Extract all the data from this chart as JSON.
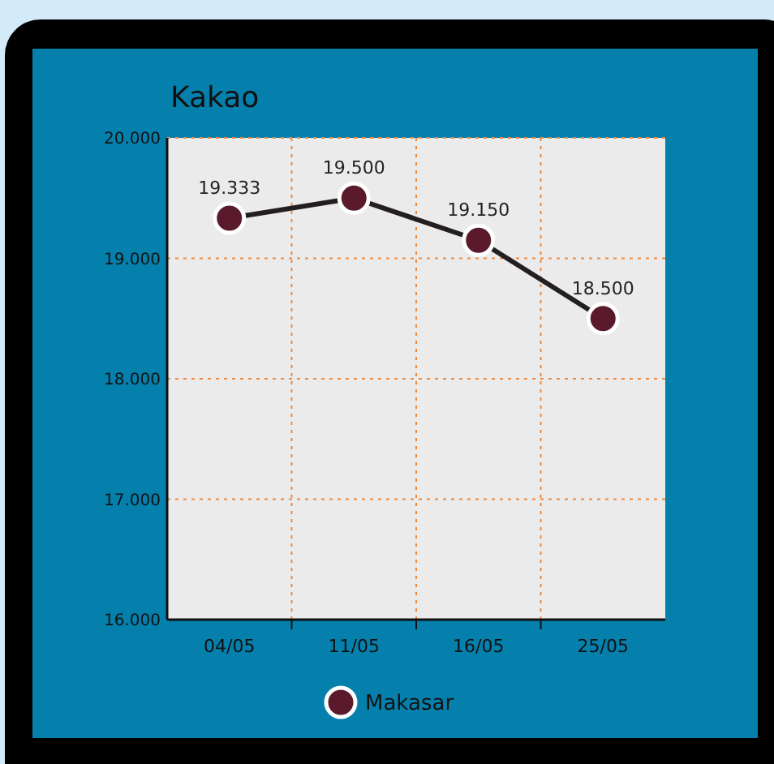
{
  "chart_data": {
    "type": "line",
    "title": "Kakao",
    "categories": [
      "04/05",
      "11/05",
      "16/05",
      "25/05"
    ],
    "series": [
      {
        "name": "Makasar",
        "color": "#5b1a2b",
        "values": [
          19333,
          19500,
          19150,
          18500
        ],
        "value_labels": [
          "19.333",
          "19.500",
          "19.150",
          "18.500"
        ]
      }
    ],
    "ylim": [
      16000,
      20000
    ],
    "yticks": [
      {
        "value": 16000,
        "label": "16.000"
      },
      {
        "value": 17000,
        "label": "17.000"
      },
      {
        "value": 18000,
        "label": "18.000"
      },
      {
        "value": 19000,
        "label": "19.000"
      },
      {
        "value": 20000,
        "label": "20.000"
      }
    ],
    "grid": true,
    "legend": "bottom",
    "marker": "circle",
    "line_style": "solid"
  }
}
